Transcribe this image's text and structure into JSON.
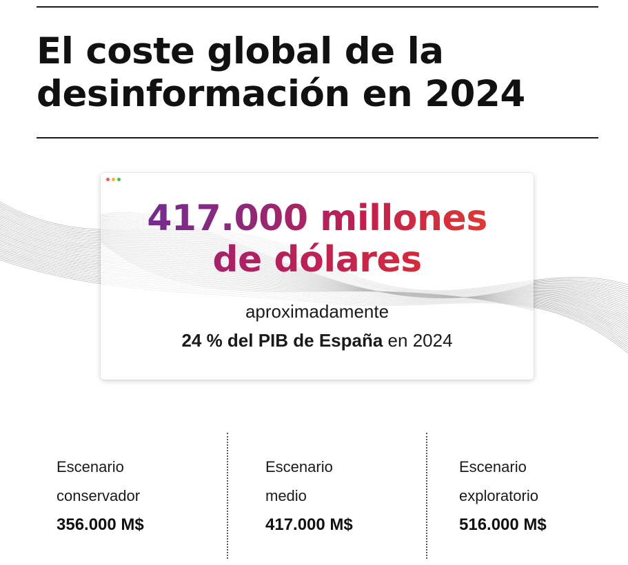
{
  "headline": {
    "line1": "El coste global de la",
    "line2": "desinformación en 2024"
  },
  "highlight": {
    "figure_line1": "417.000 millones",
    "figure_line2": "de dólares",
    "approx_text": "aproximadamente",
    "pib_bold": "24 % del PIB de España",
    "pib_rest": " en 2024",
    "gradient_colors": [
      "#6a2a95",
      "#c21e4e",
      "#e6442a"
    ]
  },
  "window_dots": [
    "#ee5a4f",
    "#f2b33d",
    "#3cbf4f"
  ],
  "scenarios": [
    {
      "label_line1": "Escenario",
      "label_line2": "conservador",
      "value": "356.000 M$"
    },
    {
      "label_line1": "Escenario",
      "label_line2": "medio",
      "value": "417.000 M$"
    },
    {
      "label_line1": "Escenario",
      "label_line2": "exploratorio",
      "value": "516.000 M$"
    }
  ]
}
